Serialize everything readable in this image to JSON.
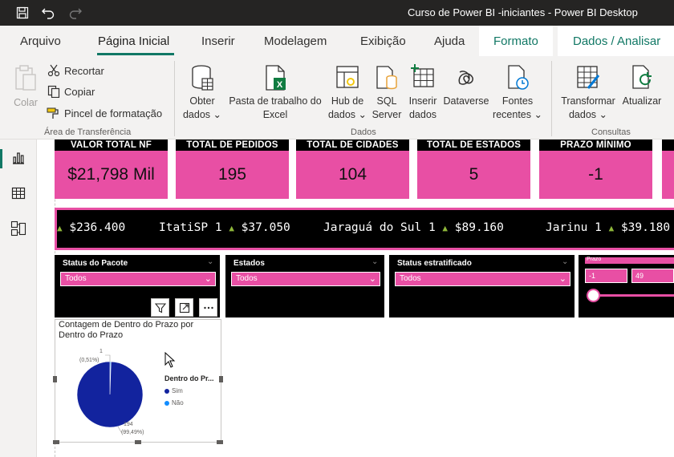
{
  "window": {
    "title": "Curso de Power BI -iniciantes - Power BI Desktop"
  },
  "menu": {
    "tabs": [
      "Arquivo",
      "Página Inicial",
      "Inserir",
      "Modelagem",
      "Exibição",
      "Ajuda",
      "Formato",
      "Dados / Analisar"
    ],
    "active": "Página Inicial"
  },
  "ribbon": {
    "clipboard": {
      "colar": "Colar",
      "recortar": "Recortar",
      "copiar": "Copiar",
      "pincel": "Pincel de formatação",
      "group_label": "Área de Transferência"
    },
    "dados": {
      "obter_1": "Obter",
      "obter_2": "dados",
      "pasta_1": "Pasta de trabalho do",
      "pasta_2": "Excel",
      "hub_1": "Hub de",
      "hub_2": "dados",
      "sql_1": "SQL",
      "sql_2": "Server",
      "inserir_1": "Inserir",
      "inserir_2": "dados",
      "dataverse": "Dataverse",
      "fontes_1": "Fontes",
      "fontes_2": "recentes",
      "group_label": "Dados"
    },
    "consultas": {
      "transformar_1": "Transformar",
      "transformar_2": "dados",
      "atualizar": "Atualizar",
      "group_label": "Consultas"
    }
  },
  "kpis": [
    {
      "label": "VALOR TOTAL NF",
      "value": "$21,798 Mil"
    },
    {
      "label": "TOTAL DE PEDIDOS",
      "value": "195"
    },
    {
      "label": "TOTAL DE CIDADES",
      "value": "104"
    },
    {
      "label": "TOTAL DE ESTADOS",
      "value": "5"
    },
    {
      "label": "PRAZO MÍNIMO",
      "value": "-1"
    }
  ],
  "ticker": {
    "items": [
      {
        "city": "",
        "count": "",
        "value": "$236.400"
      },
      {
        "city": "ItatiSP",
        "count": "1",
        "value": "$37.050"
      },
      {
        "city": "Jaraguá do Sul",
        "count": "1",
        "value": "$89.160"
      },
      {
        "city": "Jarinu",
        "count": "1",
        "value": "$39.180"
      }
    ]
  },
  "slicers": [
    {
      "label": "Status do Pacote",
      "value": "Todos"
    },
    {
      "label": "Estados",
      "value": "Todos"
    },
    {
      "label": "Status estratificado",
      "value": "Todos"
    }
  ],
  "prazo": {
    "label": "Prazo",
    "min": "-1",
    "max": "49"
  },
  "pie": {
    "title": "Contagem de Dentro do Prazo por Dentro do Prazo",
    "legend_title": "Dentro do Pr...",
    "legend_items": [
      "Sim",
      "Não"
    ],
    "label_small_count": "1",
    "label_small_pct": "(0,51%)",
    "label_big_count": "194",
    "label_big_pct": "(99,49%)",
    "colors": {
      "sim": "#12239e",
      "nao": "#118dff"
    },
    "values": {
      "sim": 194,
      "nao": 1
    }
  },
  "colors": {
    "accent": "#e84fa4",
    "brand_green": "#117865",
    "dark": "#000000"
  }
}
